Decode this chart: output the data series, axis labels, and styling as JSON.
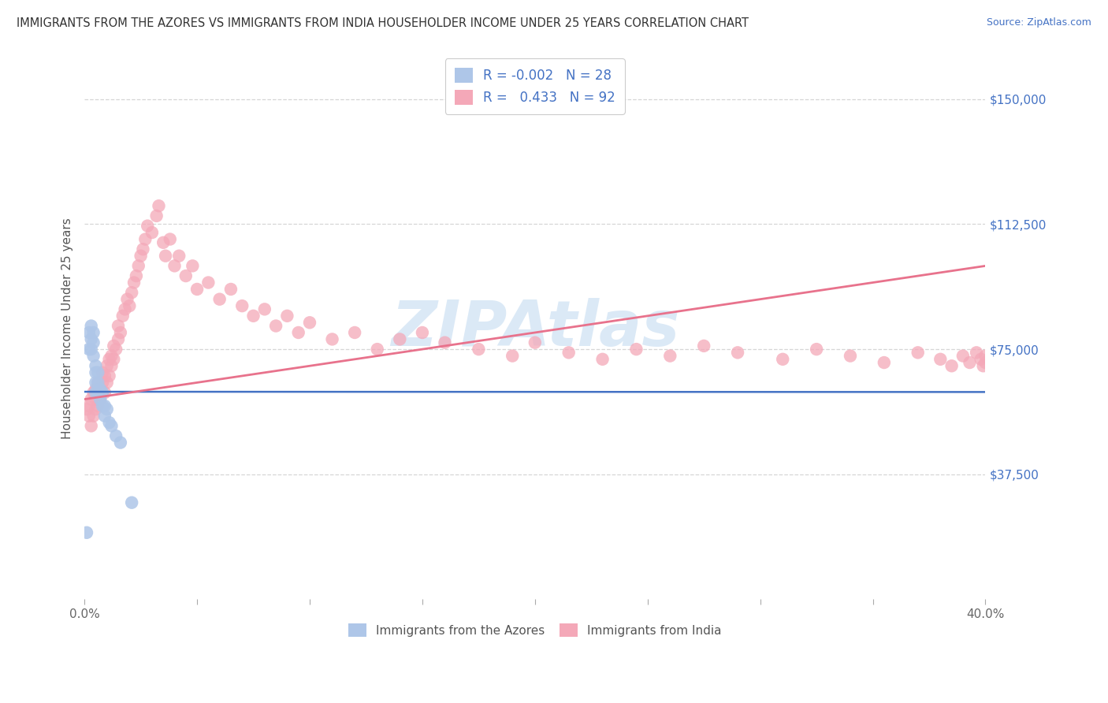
{
  "title": "IMMIGRANTS FROM THE AZORES VS IMMIGRANTS FROM INDIA HOUSEHOLDER INCOME UNDER 25 YEARS CORRELATION CHART",
  "source": "Source: ZipAtlas.com",
  "ylabel": "Householder Income Under 25 years",
  "xlim": [
    0.0,
    0.4
  ],
  "ylim": [
    0,
    162500
  ],
  "xticks": [
    0.0,
    0.05,
    0.1,
    0.15,
    0.2,
    0.25,
    0.3,
    0.35,
    0.4
  ],
  "xticklabels": [
    "0.0%",
    "",
    "",
    "",
    "",
    "",
    "",
    "",
    "40.0%"
  ],
  "ytick_positions": [
    37500,
    75000,
    112500,
    150000
  ],
  "ytick_labels": [
    "$37,500",
    "$75,000",
    "$112,500",
    "$150,000"
  ],
  "legend_r_azores": "-0.002",
  "legend_n_azores": "28",
  "legend_r_india": "0.433",
  "legend_n_india": "92",
  "color_azores": "#aec6e8",
  "color_india": "#f4a8b8",
  "line_color_azores": "#4472c4",
  "line_color_india": "#e8728c",
  "watermark_color": "#b8d4ee",
  "background_color": "#ffffff",
  "grid_color": "#cccccc",
  "azores_x": [
    0.001,
    0.002,
    0.002,
    0.003,
    0.003,
    0.003,
    0.004,
    0.004,
    0.004,
    0.005,
    0.005,
    0.005,
    0.005,
    0.006,
    0.006,
    0.006,
    0.007,
    0.007,
    0.008,
    0.008,
    0.009,
    0.009,
    0.01,
    0.011,
    0.012,
    0.014,
    0.016,
    0.021
  ],
  "azores_y": [
    20000,
    80000,
    75000,
    82000,
    78000,
    75000,
    80000,
    77000,
    73000,
    70000,
    68000,
    65000,
    62000,
    68000,
    65000,
    62000,
    63000,
    60000,
    62000,
    58000,
    58000,
    55000,
    57000,
    53000,
    52000,
    49000,
    47000,
    29000
  ],
  "india_x": [
    0.001,
    0.002,
    0.002,
    0.003,
    0.003,
    0.004,
    0.004,
    0.005,
    0.005,
    0.005,
    0.006,
    0.006,
    0.007,
    0.007,
    0.008,
    0.008,
    0.009,
    0.009,
    0.01,
    0.01,
    0.011,
    0.011,
    0.012,
    0.012,
    0.013,
    0.013,
    0.014,
    0.015,
    0.015,
    0.016,
    0.017,
    0.018,
    0.019,
    0.02,
    0.021,
    0.022,
    0.023,
    0.024,
    0.025,
    0.026,
    0.027,
    0.028,
    0.03,
    0.032,
    0.033,
    0.035,
    0.036,
    0.038,
    0.04,
    0.042,
    0.045,
    0.048,
    0.05,
    0.055,
    0.06,
    0.065,
    0.07,
    0.075,
    0.08,
    0.085,
    0.09,
    0.095,
    0.1,
    0.11,
    0.12,
    0.13,
    0.14,
    0.15,
    0.16,
    0.175,
    0.19,
    0.2,
    0.215,
    0.23,
    0.245,
    0.26,
    0.275,
    0.29,
    0.31,
    0.325,
    0.34,
    0.355,
    0.37,
    0.38,
    0.385,
    0.39,
    0.393,
    0.396,
    0.398,
    0.399,
    0.4,
    0.4
  ],
  "india_y": [
    57000,
    55000,
    58000,
    52000,
    60000,
    55000,
    62000,
    57000,
    60000,
    63000,
    58000,
    65000,
    60000,
    63000,
    65000,
    68000,
    62000,
    67000,
    65000,
    70000,
    67000,
    72000,
    70000,
    73000,
    72000,
    76000,
    75000,
    78000,
    82000,
    80000,
    85000,
    87000,
    90000,
    88000,
    92000,
    95000,
    97000,
    100000,
    103000,
    105000,
    108000,
    112000,
    110000,
    115000,
    118000,
    107000,
    103000,
    108000,
    100000,
    103000,
    97000,
    100000,
    93000,
    95000,
    90000,
    93000,
    88000,
    85000,
    87000,
    82000,
    85000,
    80000,
    83000,
    78000,
    80000,
    75000,
    78000,
    80000,
    77000,
    75000,
    73000,
    77000,
    74000,
    72000,
    75000,
    73000,
    76000,
    74000,
    72000,
    75000,
    73000,
    71000,
    74000,
    72000,
    70000,
    73000,
    71000,
    74000,
    72000,
    70000,
    73000,
    71000
  ]
}
